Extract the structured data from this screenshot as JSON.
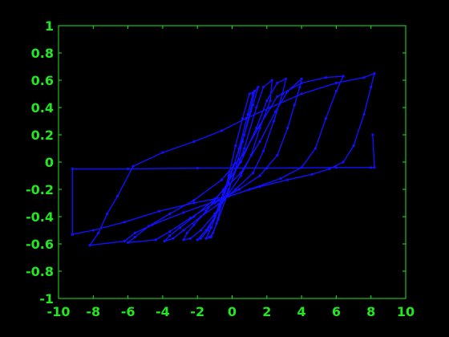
{
  "chart_data": {
    "type": "line",
    "title": "",
    "xlabel": "",
    "ylabel": "",
    "xlim": [
      -10,
      10
    ],
    "ylim": [
      -1,
      1
    ],
    "xticks": [
      -10,
      -8,
      -6,
      -4,
      -2,
      0,
      2,
      4,
      6,
      8,
      10
    ],
    "yticks": [
      -1,
      -0.8,
      -0.6,
      -0.4,
      -0.2,
      0,
      0.2,
      0.4,
      0.6,
      0.8,
      1
    ],
    "xtick_labels": [
      "-10",
      "-8",
      "-6",
      "-4",
      "-2",
      "0",
      "2",
      "4",
      "6",
      "8",
      "10"
    ],
    "ytick_labels": [
      "-1",
      "-0.8",
      "-0.6",
      "-0.4",
      "-0.2",
      "0",
      "0.2",
      "0.4",
      "0.6",
      "0.8",
      "1"
    ],
    "grid": false,
    "colors": {
      "background": "#000000",
      "axes": "#22e822",
      "series": "#1010ff"
    },
    "series": [
      {
        "x": [
          -1.2,
          -0.9,
          -0.6,
          -0.2,
          0.2,
          0.6,
          1.0,
          1.3,
          1.0,
          0.6,
          0.2,
          -0.3,
          -0.8,
          -1.1,
          -1.3,
          -1.5,
          -1.2,
          -0.8,
          -0.2,
          0.4,
          0.9,
          1.2,
          1.5,
          1.2,
          0.7,
          0.1,
          -0.5,
          -1.0,
          -1.4,
          -1.8,
          -2.0,
          -1.5,
          -1.0,
          -0.2,
          0.7,
          1.4,
          1.8,
          2.3,
          2.2,
          1.6,
          1.1,
          0.5,
          -0.3,
          -1.0,
          -1.8,
          -2.4,
          -2.8,
          -2.6,
          -2.2,
          -1.5,
          -0.5,
          0.5,
          1.4,
          2.0,
          2.6,
          3.1,
          2.9,
          2.4,
          1.8,
          1.2,
          0.2,
          -0.8,
          -1.8,
          -2.8,
          -3.4,
          -3.9,
          -3.6,
          -3.0,
          -2.2,
          -1.0,
          0.5,
          1.6,
          2.5,
          3.2,
          4.0,
          3.9,
          3.6,
          3.2,
          2.6,
          1.6,
          0.4,
          -1.0,
          -2.4,
          -3.6,
          -4.4,
          -6.0,
          -5.6,
          -4.8,
          -3.6,
          -2.2,
          -0.6,
          0.6,
          1.6,
          2.6,
          4.0,
          5.4,
          6.4,
          6.0,
          5.4,
          4.8,
          4.0,
          2.8,
          1.0,
          -0.8,
          -2.8,
          -4.6,
          -5.6,
          -6.2,
          -8.2,
          -7.7,
          -7.2,
          -6.6,
          -5.7,
          -4.0,
          -2.2,
          -0.6,
          0.8,
          2.2,
          4.0,
          6.0,
          7.6,
          8.2,
          8.0,
          7.6,
          7.0,
          6.4,
          5.6,
          4.6,
          3.2,
          1.6,
          -0.2,
          -2.2,
          -4.2,
          -6.2,
          -8.0,
          -9.2,
          -9.2,
          -9.2,
          -6.0,
          -2.0,
          2.0,
          6.0,
          8.0,
          8.2,
          8.1
        ],
        "y": [
          -0.55,
          -0.45,
          -0.3,
          -0.1,
          0.12,
          0.32,
          0.5,
          0.52,
          0.35,
          0.15,
          -0.05,
          -0.25,
          -0.42,
          -0.52,
          -0.55,
          -0.56,
          -0.48,
          -0.35,
          -0.15,
          0.1,
          0.35,
          0.5,
          0.55,
          0.42,
          0.2,
          -0.02,
          -0.22,
          -0.4,
          -0.5,
          -0.56,
          -0.57,
          -0.5,
          -0.4,
          -0.2,
          0.1,
          0.4,
          0.55,
          0.6,
          0.45,
          0.25,
          0.05,
          -0.1,
          -0.25,
          -0.38,
          -0.5,
          -0.56,
          -0.57,
          -0.52,
          -0.46,
          -0.36,
          -0.2,
          0.0,
          0.25,
          0.45,
          0.58,
          0.61,
          0.5,
          0.3,
          0.08,
          -0.08,
          -0.2,
          -0.31,
          -0.4,
          -0.5,
          -0.56,
          -0.58,
          -0.54,
          -0.48,
          -0.4,
          -0.27,
          -0.08,
          0.15,
          0.37,
          0.52,
          0.61,
          0.55,
          0.42,
          0.25,
          0.05,
          -0.1,
          -0.2,
          -0.3,
          -0.41,
          -0.51,
          -0.57,
          -0.59,
          -0.55,
          -0.47,
          -0.38,
          -0.28,
          -0.13,
          0.05,
          0.27,
          0.48,
          0.58,
          0.62,
          0.63,
          0.52,
          0.32,
          0.1,
          -0.04,
          -0.12,
          -0.2,
          -0.28,
          -0.37,
          -0.46,
          -0.52,
          -0.58,
          -0.61,
          -0.52,
          -0.38,
          -0.25,
          -0.03,
          0.07,
          0.15,
          0.23,
          0.32,
          0.4,
          0.5,
          0.58,
          0.62,
          0.65,
          0.55,
          0.35,
          0.12,
          0.0,
          -0.05,
          -0.09,
          -0.13,
          -0.18,
          -0.25,
          -0.3,
          -0.36,
          -0.44,
          -0.5,
          -0.53,
          -0.53,
          -0.05,
          -0.05,
          -0.045,
          -0.045,
          -0.04,
          -0.04,
          -0.04,
          0.2
        ]
      }
    ]
  }
}
